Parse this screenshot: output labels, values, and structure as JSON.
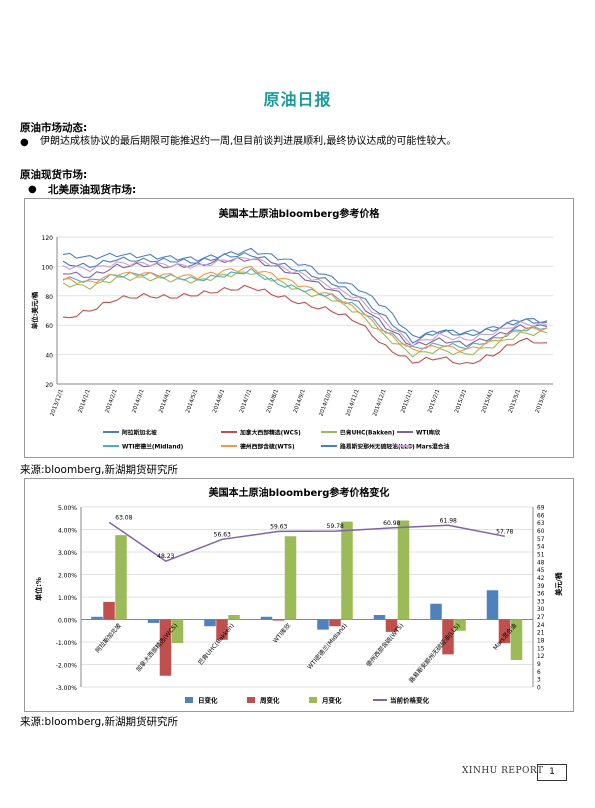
{
  "page_title": "原油日报",
  "section1": {
    "heading": "原油市场动态:",
    "bullet_glyph": "●",
    "bullet_text": "伊朗达成核协议的最后期限可能推迟约一周,但目前谈判进展顺利,最终协议达成的可能性较大。"
  },
  "section2": {
    "heading": "原油现货市场:",
    "sub_bullet_glyph": "●",
    "sub_heading": "北美原油现货市场:"
  },
  "source1": "来源:bloomberg,新湖期货研究所",
  "source2": "来源:bloomberg,新湖期货研究所",
  "footer": {
    "report": "XINHU REPORT",
    "page": "1"
  },
  "chart_data": [
    {
      "type": "line",
      "title": "美国本土原油bloomberg参考价格",
      "ylabel": "单位:美元/桶",
      "ylim": [
        20,
        120
      ],
      "yticks": [
        20,
        40,
        60,
        80,
        100,
        120
      ],
      "x": [
        "2013/12/1",
        "2014/1/1",
        "2014/2/1",
        "2014/3/1",
        "2014/4/1",
        "2014/5/1",
        "2014/6/1",
        "2014/7/1",
        "2014/8/1",
        "2014/9/1",
        "2014/10/1",
        "2014/11/1",
        "2014/12/1",
        "2015/1/1",
        "2015/2/1",
        "2015/3/1",
        "2015/4/1",
        "2015/5/1",
        "2015/6/1"
      ],
      "series": [
        {
          "name": "阿拉斯加北坡",
          "color": "#4f81bd",
          "values": [
            108,
            106,
            108,
            107,
            106,
            105,
            108,
            111,
            106,
            101,
            92,
            85,
            72,
            52,
            56,
            55,
            58,
            64,
            63
          ]
        },
        {
          "name": "加拿大西部精选(WCS)",
          "color": "#c0504d",
          "values": [
            64,
            70,
            78,
            80,
            79,
            81,
            84,
            86,
            80,
            74,
            70,
            62,
            45,
            35,
            38,
            33,
            40,
            50,
            48
          ]
        },
        {
          "name": "巴肯UHC(Bakken)",
          "color": "#9bbb59",
          "values": [
            88,
            86,
            92,
            92,
            91,
            90,
            94,
            96,
            90,
            82,
            78,
            68,
            52,
            40,
            43,
            40,
            46,
            54,
            55
          ]
        },
        {
          "name": "WTI库欣",
          "color": "#8064a2",
          "values": [
            96,
            93,
            100,
            101,
            100,
            101,
            104,
            105,
            99,
            92,
            84,
            75,
            59,
            46,
            50,
            47,
            52,
            59,
            59
          ]
        },
        {
          "name": "WTI密德兰(Midland)",
          "color": "#4bacc6",
          "values": [
            92,
            90,
            94,
            95,
            93,
            91,
            94,
            97,
            88,
            84,
            80,
            72,
            56,
            44,
            47,
            45,
            50,
            57,
            58
          ]
        },
        {
          "name": "德州西部含硫(WTS)",
          "color": "#f79646",
          "values": [
            91,
            89,
            95,
            95,
            94,
            93,
            97,
            99,
            93,
            86,
            80,
            70,
            55,
            43,
            46,
            43,
            49,
            57,
            58
          ]
        },
        {
          "name": "路易斯安那州无硫轻油(LLS)",
          "color": "#4a7ebb",
          "values": [
            102,
            100,
            105,
            104,
            104,
            103,
            107,
            108,
            102,
            96,
            89,
            80,
            65,
            49,
            56,
            53,
            57,
            63,
            62
          ]
        },
        {
          "name": "Mars混合油",
          "color": "#c9a0c9",
          "values": [
            100,
            98,
            102,
            102,
            101,
            100,
            104,
            106,
            100,
            94,
            86,
            78,
            62,
            47,
            53,
            50,
            55,
            61,
            60
          ]
        }
      ]
    },
    {
      "type": "bar",
      "title": "美国本土原油bloomberg参考价格变化",
      "ylabel": "单位:%",
      "y2label": "美元/桶",
      "ylim": [
        -3,
        5
      ],
      "yticks": [
        "5.00%",
        "4.00%",
        "3.00%",
        "2.00%",
        "1.00%",
        "0.00%",
        "-1.00%",
        "-2.00%",
        "-3.00%"
      ],
      "y2lim": [
        0,
        69
      ],
      "y2ticks": [
        0,
        3,
        6,
        9,
        12,
        15,
        18,
        21,
        24,
        27,
        30,
        33,
        36,
        39,
        42,
        45,
        48,
        51,
        54,
        57,
        60,
        63,
        66,
        69
      ],
      "categories": [
        "阿拉斯加北坡",
        "加拿大西部精选(WCS)",
        "巴肯UHC(Bakken)",
        "WTI库欣",
        "WTI密德兰(Midland)",
        "德州西部含硫(WTS)",
        "路易斯安那州无硫轻油(LLS)",
        "Mars混合油"
      ],
      "series": [
        {
          "name": "日变化",
          "color": "#4f81bd",
          "values": [
            0.12,
            -0.15,
            -0.3,
            0.12,
            -0.45,
            0.2,
            0.7,
            1.3
          ]
        },
        {
          "name": "周变化",
          "color": "#c0504d",
          "values": [
            0.78,
            -2.5,
            -0.9,
            -0.05,
            -0.3,
            -0.55,
            -1.55,
            -1.05
          ]
        },
        {
          "name": "月变化",
          "color": "#9bbb59",
          "values": [
            3.75,
            -1.05,
            0.2,
            3.7,
            4.35,
            4.4,
            -0.5,
            -1.8
          ]
        },
        {
          "name": "当前价格变化",
          "color": "#8064a2",
          "values": [
            63.08,
            48.23,
            56.63,
            59.63,
            59.78,
            60.98,
            61.98,
            57.78
          ]
        }
      ]
    }
  ]
}
